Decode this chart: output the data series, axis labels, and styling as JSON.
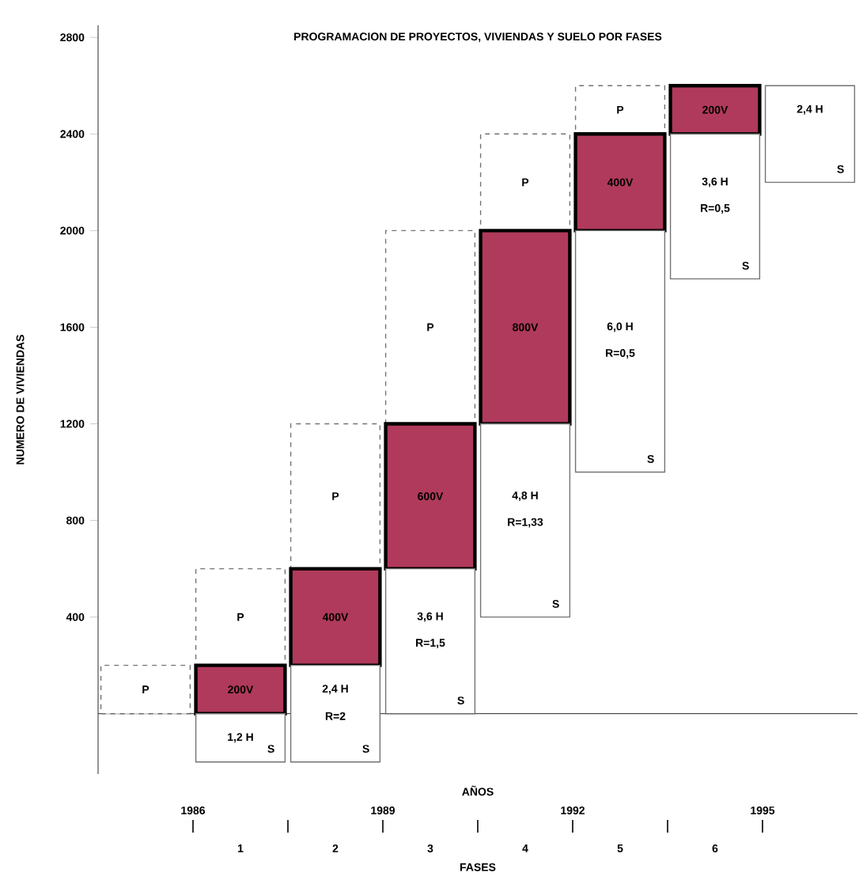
{
  "chart_data": {
    "type": "bar",
    "title": "PROGRAMACION DE PROYECTOS, VIVIENDAS Y SUELO POR FASES",
    "ylabel": "NUMERO DE VIVIENDAS",
    "xlabel": "FASES",
    "x2label": "AÑOS",
    "categories": [
      null,
      "1",
      "2",
      "3",
      "4",
      "5",
      "6",
      null
    ],
    "x2lim": [
      1984.5,
      1996.5
    ],
    "x2ticks": [
      1986,
      1989,
      1992,
      1995
    ],
    "ylim": [
      -250,
      2850
    ],
    "yticks": [
      400,
      800,
      1200,
      1600,
      2000,
      2400,
      2800
    ],
    "series": [
      {
        "name": "P",
        "color": "#ffffff",
        "line_style": "dashed",
        "values": [
          200,
          400,
          600,
          800,
          400,
          200,
          null,
          null
        ],
        "base": [
          0,
          200,
          600,
          1200,
          2000,
          2400,
          null,
          null
        ]
      },
      {
        "color": "#b03a5b",
        "line_style": "solid",
        "values": [
          null,
          200,
          400,
          600,
          800,
          400,
          200,
          null
        ],
        "base": [
          null,
          0,
          200,
          600,
          1200,
          2000,
          2400,
          null
        ],
        "value_labels": [
          null,
          "200V",
          "400V",
          "600V",
          "800V",
          "400V",
          "200V",
          null
        ]
      },
      {
        "name": "S",
        "color": "#ffffff",
        "line_style": "solid",
        "values": [
          null,
          200,
          400,
          600,
          800,
          1000,
          600,
          400
        ],
        "base": [
          null,
          -200,
          -200,
          0,
          400,
          1000,
          1800,
          2200
        ]
      }
    ],
    "annotations": [
      "1,2 H",
      "2,4 H",
      "R=2",
      "3,6 H",
      "R=1,5",
      "4,8 H",
      "R=1,33",
      "6,0 H",
      "R=0,5",
      "3,6 H",
      "R=0,5",
      "2,4 H"
    ]
  }
}
